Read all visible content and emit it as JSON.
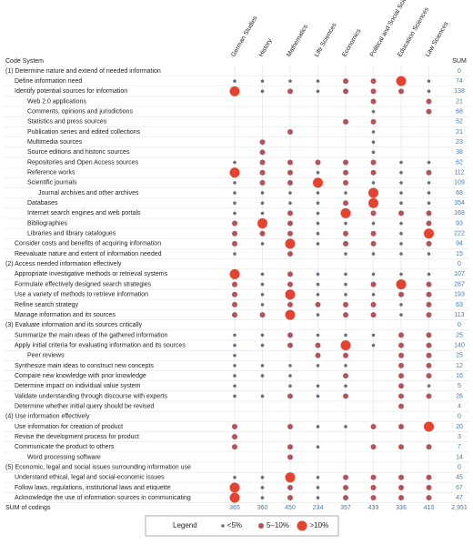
{
  "matrix": {
    "code_header": "Code System",
    "sum_header": "SUM",
    "columns": [
      "German Studies",
      "History",
      "Mathematics",
      "Life Sciences",
      "Economics",
      "Political and Social Sciences",
      "Education Sciences",
      "Law Sciences"
    ],
    "rows": [
      {
        "label": "(1) Determine nature and extend of needed information",
        "indent": 0,
        "cells": [
          0,
          0,
          0,
          0,
          0,
          0,
          0,
          0
        ],
        "sum": 0
      },
      {
        "label": "Define information need",
        "indent": 1,
        "cells": [
          1,
          1,
          1,
          1,
          2,
          2,
          3,
          1
        ],
        "sum": 74
      },
      {
        "label": "Identify potential sources for information",
        "indent": 1,
        "cells": [
          3,
          1,
          2,
          1,
          2,
          2,
          2,
          1
        ],
        "sum": 138
      },
      {
        "label": "Web 2.0 applications",
        "indent": 2,
        "cells": [
          0,
          0,
          0,
          0,
          0,
          2,
          0,
          2
        ],
        "sum": 21
      },
      {
        "label": "Comments, opinions and jurisdictions",
        "indent": 2,
        "cells": [
          0,
          0,
          0,
          0,
          0,
          1,
          0,
          2
        ],
        "sum": 68
      },
      {
        "label": "Statistics and press sources",
        "indent": 2,
        "cells": [
          0,
          0,
          0,
          0,
          2,
          2,
          0,
          0
        ],
        "sum": 52
      },
      {
        "label": "Publication series and edited collections",
        "indent": 2,
        "cells": [
          0,
          0,
          2,
          0,
          0,
          1,
          0,
          0
        ],
        "sum": 21
      },
      {
        "label": "Multimedia sources",
        "indent": 2,
        "cells": [
          0,
          2,
          0,
          0,
          0,
          1,
          0,
          0
        ],
        "sum": 23
      },
      {
        "label": "Source editions and historic sources",
        "indent": 2,
        "cells": [
          0,
          2,
          0,
          0,
          0,
          1,
          0,
          0
        ],
        "sum": 38
      },
      {
        "label": "Repositories and Open Access sources",
        "indent": 2,
        "cells": [
          1,
          2,
          2,
          2,
          2,
          2,
          1,
          1
        ],
        "sum": 62
      },
      {
        "label": "Reference works",
        "indent": 2,
        "cells": [
          3,
          2,
          2,
          1,
          2,
          2,
          1,
          2
        ],
        "sum": 112
      },
      {
        "label": "Scientific journals",
        "indent": 2,
        "cells": [
          1,
          2,
          2,
          3,
          2,
          1,
          1,
          1
        ],
        "sum": 109
      },
      {
        "label": "Journal archives and other archives",
        "indent": 3,
        "cells": [
          1,
          1,
          1,
          1,
          1,
          3,
          1,
          1
        ],
        "sum": 68
      },
      {
        "label": "Databases",
        "indent": 2,
        "cells": [
          1,
          1,
          1,
          1,
          2,
          3,
          1,
          1
        ],
        "sum": 354
      },
      {
        "label": "Internet search engines and web portals",
        "indent": 2,
        "cells": [
          1,
          1,
          2,
          1,
          3,
          2,
          2,
          2
        ],
        "sum": 168
      },
      {
        "label": "Bibliographies",
        "indent": 2,
        "cells": [
          2,
          3,
          2,
          1,
          1,
          1,
          1,
          2
        ],
        "sum": 93
      },
      {
        "label": "Libraries and library catalogues",
        "indent": 2,
        "cells": [
          2,
          2,
          2,
          1,
          2,
          2,
          1,
          3
        ],
        "sum": 222
      },
      {
        "label": "Consider costs and benefits of acquiring information",
        "indent": 1,
        "cells": [
          2,
          1,
          3,
          1,
          2,
          2,
          1,
          2
        ],
        "sum": 94
      },
      {
        "label": "Reevaluate nature and extent of information needed",
        "indent": 1,
        "cells": [
          1,
          0,
          2,
          0,
          1,
          1,
          1,
          1
        ],
        "sum": 15
      },
      {
        "label": "(2) Access needed information effectively",
        "indent": 0,
        "cells": [
          0,
          0,
          0,
          0,
          0,
          0,
          0,
          0
        ],
        "sum": 0
      },
      {
        "label": "Appropriate investigative methods or retrieval systems",
        "indent": 1,
        "cells": [
          3,
          1,
          2,
          1,
          1,
          1,
          1,
          1
        ],
        "sum": 107
      },
      {
        "label": "Formulate effectively designed search strategies",
        "indent": 1,
        "cells": [
          2,
          1,
          2,
          1,
          1,
          2,
          3,
          2
        ],
        "sum": 287
      },
      {
        "label": "Use a variety of methods to retrieve information",
        "indent": 1,
        "cells": [
          2,
          1,
          3,
          1,
          1,
          1,
          2,
          2
        ],
        "sum": 193
      },
      {
        "label": "Refine search strategy",
        "indent": 1,
        "cells": [
          2,
          1,
          2,
          2,
          2,
          2,
          1,
          2
        ],
        "sum": 63
      },
      {
        "label": "Manage information and its sources",
        "indent": 1,
        "cells": [
          2,
          2,
          3,
          1,
          2,
          2,
          1,
          2
        ],
        "sum": 113
      },
      {
        "label": "(3) Evaluate information and its sources critically",
        "indent": 0,
        "cells": [
          0,
          0,
          0,
          0,
          0,
          0,
          0,
          0
        ],
        "sum": 0
      },
      {
        "label": "Summarize the main ideas of the gathered information",
        "indent": 1,
        "cells": [
          1,
          1,
          2,
          1,
          1,
          1,
          2,
          2
        ],
        "sum": 25
      },
      {
        "label": "Apply initial criteria for evaluating information and its sources",
        "indent": 1,
        "cells": [
          1,
          1,
          2,
          2,
          3,
          1,
          2,
          2
        ],
        "sum": 140
      },
      {
        "label": "Peer reviews",
        "indent": 2,
        "cells": [
          1,
          0,
          0,
          2,
          2,
          0,
          2,
          2
        ],
        "sum": 25
      },
      {
        "label": "Synthesize main ideas to construct new concepts",
        "indent": 1,
        "cells": [
          1,
          1,
          1,
          1,
          1,
          0,
          2,
          2
        ],
        "sum": 12
      },
      {
        "label": "Compare new knowledge with prior knowledge",
        "indent": 1,
        "cells": [
          1,
          1,
          1,
          0,
          2,
          0,
          2,
          2
        ],
        "sum": 16
      },
      {
        "label": "Determine impact on individual value system",
        "indent": 1,
        "cells": [
          1,
          0,
          1,
          1,
          1,
          0,
          2,
          1
        ],
        "sum": 5
      },
      {
        "label": "Validate understanding through discourse with experts",
        "indent": 1,
        "cells": [
          1,
          1,
          2,
          1,
          2,
          0,
          2,
          2
        ],
        "sum": 26
      },
      {
        "label": "Determine whether initial query should be revised",
        "indent": 1,
        "cells": [
          0,
          0,
          0,
          0,
          0,
          0,
          2,
          0
        ],
        "sum": 4
      },
      {
        "label": "(4) Use information effectively",
        "indent": 0,
        "cells": [
          0,
          0,
          0,
          0,
          0,
          0,
          0,
          0
        ],
        "sum": 0
      },
      {
        "label": "Use information for creation of product",
        "indent": 1,
        "cells": [
          2,
          0,
          2,
          1,
          1,
          2,
          2,
          3
        ],
        "sum": 20
      },
      {
        "label": "Revise the development process for product",
        "indent": 1,
        "cells": [
          2,
          0,
          0,
          0,
          0,
          0,
          0,
          0
        ],
        "sum": 3
      },
      {
        "label": "Communicate the product to others",
        "indent": 1,
        "cells": [
          2,
          0,
          2,
          1,
          0,
          2,
          2,
          2
        ],
        "sum": 7
      },
      {
        "label": "Word processing software",
        "indent": 2,
        "cells": [
          0,
          0,
          2,
          0,
          0,
          0,
          0,
          0
        ],
        "sum": 14
      },
      {
        "label": "(5) Economic, legal and social issues surrounding information use",
        "indent": 0,
        "cells": [
          0,
          0,
          0,
          0,
          0,
          0,
          0,
          0
        ],
        "sum": 0
      },
      {
        "label": "Understand ethical, legal and social-economic issues",
        "indent": 1,
        "cells": [
          1,
          1,
          3,
          1,
          2,
          2,
          2,
          2
        ],
        "sum": 45
      },
      {
        "label": "Follow laws, regulations, institutional laws and etiquette",
        "indent": 1,
        "cells": [
          3,
          1,
          2,
          1,
          2,
          2,
          2,
          2
        ],
        "sum": 67
      },
      {
        "label": "Acknowledge the use of information sources in communicating",
        "indent": 1,
        "cells": [
          3,
          1,
          2,
          1,
          2,
          2,
          2,
          2
        ],
        "sum": 47
      }
    ],
    "sum_row": {
      "label": "SUM of codings",
      "values": [
        365,
        360,
        450,
        234,
        357,
        439,
        336,
        410
      ],
      "total": {
        "value": 2951,
        "label": "2,951"
      }
    },
    "legend": {
      "title": "Legend",
      "items": [
        "<5%",
        "5–10%",
        ">10%"
      ]
    }
  }
}
